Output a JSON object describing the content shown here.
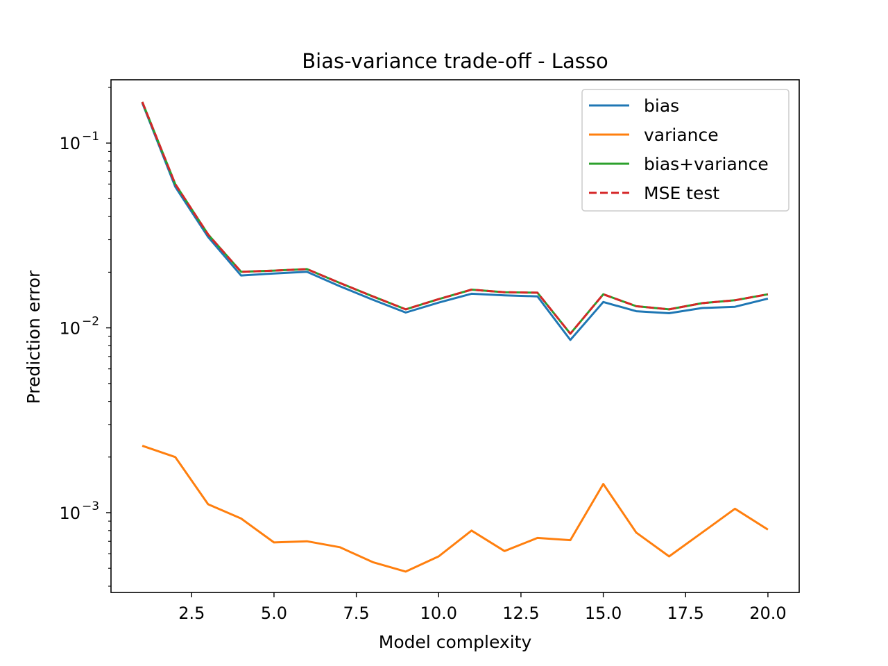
{
  "chart_data": {
    "type": "line",
    "title": "Bias-variance trade-off - Lasso",
    "xlabel": "Model complexity",
    "ylabel": "Prediction error",
    "yscale": "log",
    "xlim": [
      0.05,
      20.95
    ],
    "ylim": [
      0.00037,
      0.22
    ],
    "grid": false,
    "legend_position": "top-right",
    "x_ticks": [
      {
        "value": 2.5,
        "label": "2.5"
      },
      {
        "value": 5.0,
        "label": "5.0"
      },
      {
        "value": 7.5,
        "label": "7.5"
      },
      {
        "value": 10.0,
        "label": "10.0"
      },
      {
        "value": 12.5,
        "label": "12.5"
      },
      {
        "value": 15.0,
        "label": "15.0"
      },
      {
        "value": 17.5,
        "label": "17.5"
      },
      {
        "value": 20.0,
        "label": "20.0"
      }
    ],
    "y_ticks": [
      {
        "value": 0.1,
        "base": "10",
        "exp": "−1"
      },
      {
        "value": 0.01,
        "base": "10",
        "exp": "−2"
      },
      {
        "value": 0.001,
        "base": "10",
        "exp": "−3"
      }
    ],
    "x": [
      1,
      2,
      3,
      4,
      5,
      6,
      7,
      8,
      9,
      10,
      11,
      12,
      13,
      14,
      15,
      16,
      17,
      18,
      19,
      20
    ],
    "series": [
      {
        "name": "bias",
        "color": "#1f77b4",
        "dash": "solid",
        "values": [
          0.165,
          0.058,
          0.031,
          0.0192,
          0.0197,
          0.0201,
          0.0168,
          0.0142,
          0.0121,
          0.0137,
          0.0153,
          0.015,
          0.0148,
          0.0086,
          0.0138,
          0.0123,
          0.012,
          0.0128,
          0.013,
          0.0144
        ]
      },
      {
        "name": "variance",
        "color": "#ff7f0e",
        "dash": "solid",
        "values": [
          0.0023,
          0.002,
          0.00111,
          0.00093,
          0.00069,
          0.0007,
          0.00065,
          0.00054,
          0.00048,
          0.00058,
          0.0008,
          0.00062,
          0.00073,
          0.00071,
          0.00143,
          0.00078,
          0.00058,
          0.00078,
          0.00105,
          0.00081
        ]
      },
      {
        "name": "bias+variance",
        "color": "#2ca02c",
        "dash": "solid",
        "values": [
          0.167,
          0.06,
          0.032,
          0.0201,
          0.0204,
          0.0208,
          0.0175,
          0.0148,
          0.0126,
          0.0143,
          0.0161,
          0.0156,
          0.0155,
          0.0093,
          0.0152,
          0.0131,
          0.0126,
          0.0136,
          0.0141,
          0.0152
        ]
      },
      {
        "name": "MSE test",
        "color": "#d62728",
        "dash": "dashed",
        "values": [
          0.167,
          0.06,
          0.032,
          0.0201,
          0.0204,
          0.0208,
          0.0175,
          0.0148,
          0.0126,
          0.0143,
          0.0161,
          0.0156,
          0.0155,
          0.0093,
          0.0152,
          0.0131,
          0.0126,
          0.0136,
          0.0141,
          0.0152
        ]
      }
    ]
  }
}
